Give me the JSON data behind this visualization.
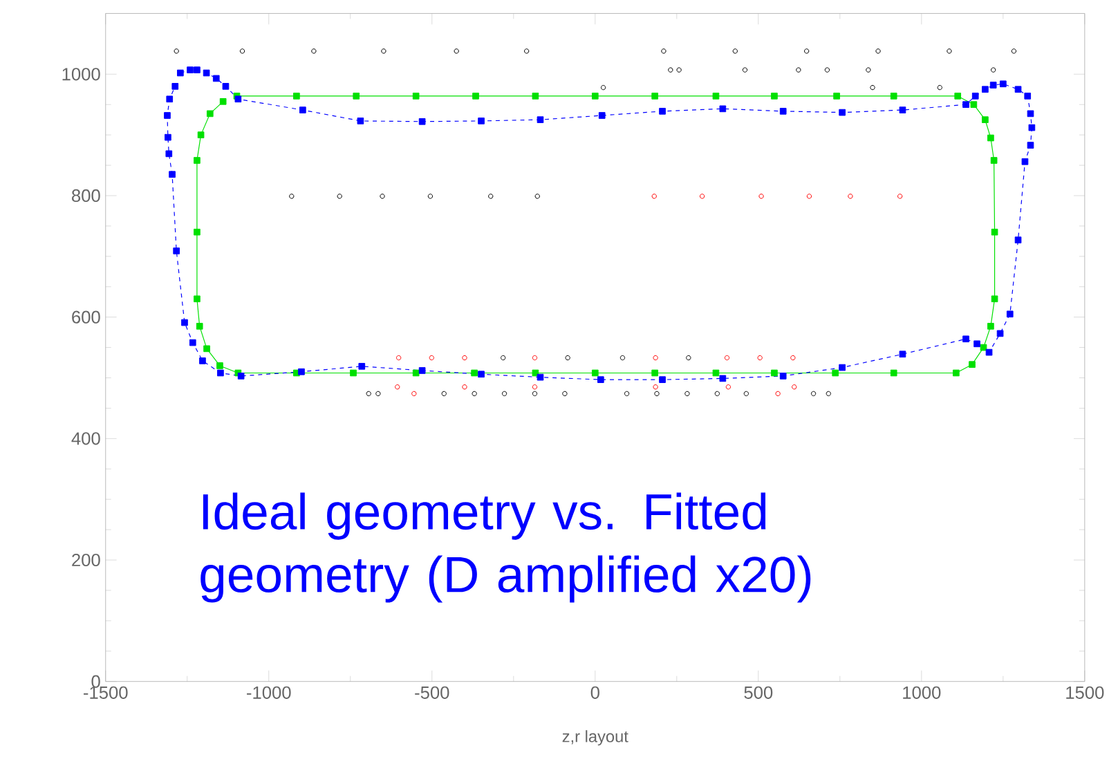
{
  "chart_data": {
    "type": "scatter",
    "xlabel": "z,r layout",
    "xlim": [
      -1500,
      1500
    ],
    "ylim": [
      0,
      1100
    ],
    "xticks": [
      -1500,
      -1000,
      -500,
      0,
      500,
      1000,
      1500
    ],
    "yticks": [
      0,
      200,
      400,
      600,
      800,
      1000
    ],
    "annotations": [
      "Ideal geometry vs. Fitted geometry (D amplified x20)"
    ],
    "series": [
      {
        "color": "#000000",
        "marker": "circle",
        "x": [
          -1283,
          -1081,
          -862,
          -648,
          -425,
          -210,
          210,
          429,
          648,
          867,
          1085,
          1283,
          231,
          257,
          459,
          623,
          711,
          837,
          1220,
          25,
          850,
          1056,
          -930,
          -783,
          -652,
          -505,
          -320,
          -177,
          -282,
          -84,
          84,
          286,
          -694,
          -665,
          -463,
          -370,
          -278,
          -185,
          -93,
          97,
          189,
          282,
          374,
          463,
          669,
          715
        ],
        "values": [
          1038,
          1038,
          1038,
          1038,
          1038,
          1038,
          1038,
          1038,
          1038,
          1038,
          1038,
          1038,
          1007,
          1007,
          1007,
          1007,
          1007,
          1007,
          1007,
          978,
          978,
          978,
          799,
          799,
          799,
          799,
          799,
          799,
          533,
          533,
          533,
          533,
          474,
          474,
          474,
          474,
          474,
          474,
          474,
          474,
          474,
          474,
          474,
          474,
          474,
          474
        ]
      },
      {
        "color": "#ff0000",
        "marker": "circle",
        "x": [
          181,
          328,
          509,
          656,
          782,
          934,
          -602,
          -501,
          -400,
          -185,
          185,
          404,
          505,
          606,
          -555,
          560,
          -606,
          -400,
          -185,
          185,
          408,
          610
        ],
        "values": [
          799,
          799,
          799,
          799,
          799,
          799,
          533,
          533,
          533,
          533,
          533,
          533,
          533,
          533,
          474,
          474,
          485,
          485,
          485,
          485,
          485,
          485
        ]
      },
      {
        "type": "line",
        "color": "#00e000",
        "marker": "square",
        "line_style": "solid",
        "x": [
          -1098,
          -915,
          -732,
          -549,
          -366,
          -183,
          0,
          183,
          370,
          549,
          740,
          915,
          1111,
          1160,
          1195,
          1212,
          1222,
          1224,
          1224,
          1212,
          1190,
          1155,
          1106,
          915,
          736,
          549,
          370,
          183,
          0,
          -183,
          -370,
          -549,
          -741,
          -915,
          -1094,
          -1150,
          -1190,
          -1212,
          -1220,
          -1220,
          -1220,
          -1208,
          -1180,
          -1140
        ],
        "values": [
          964,
          964,
          964,
          964,
          964,
          964,
          964,
          964,
          964,
          964,
          964,
          964,
          964,
          950,
          925,
          895,
          858,
          740,
          630,
          585,
          550,
          522,
          508,
          508,
          508,
          508,
          508,
          508,
          508,
          508,
          508,
          508,
          508,
          508,
          508,
          520,
          548,
          585,
          630,
          740,
          858,
          900,
          935,
          955
        ]
      },
      {
        "type": "line",
        "color": "#0000ff",
        "marker": "square",
        "line_style": "dashed",
        "x": [
          -1271,
          -1241,
          -1220,
          -1191,
          -1161,
          -1132,
          -1094,
          -896,
          -719,
          -530,
          -349,
          -168,
          21,
          206,
          391,
          576,
          757,
          942,
          1136,
          1165,
          1195,
          1220,
          1250,
          1296,
          1325,
          1334,
          1338,
          1334,
          1317,
          1296,
          1271,
          1241,
          1207,
          1170,
          1136,
          942,
          757,
          576,
          391,
          206,
          17,
          -168,
          -349,
          -530,
          -715,
          -900,
          -1085,
          -1148,
          -1203,
          -1233,
          -1258,
          -1283,
          -1296,
          -1306,
          -1309,
          -1311,
          -1304,
          -1287
        ],
        "values": [
          1002,
          1007,
          1007,
          1002,
          993,
          980,
          959,
          941,
          923,
          922,
          923,
          925,
          932,
          939,
          943,
          939,
          937,
          941,
          950,
          964,
          975,
          982,
          984,
          975,
          964,
          935,
          912,
          883,
          856,
          727,
          605,
          573,
          542,
          556,
          564,
          539,
          517,
          503,
          499,
          497,
          497,
          501,
          506,
          512,
          519,
          510,
          503,
          508,
          528,
          558,
          591,
          709,
          835,
          869,
          896,
          932,
          959,
          980
        ]
      }
    ]
  }
}
